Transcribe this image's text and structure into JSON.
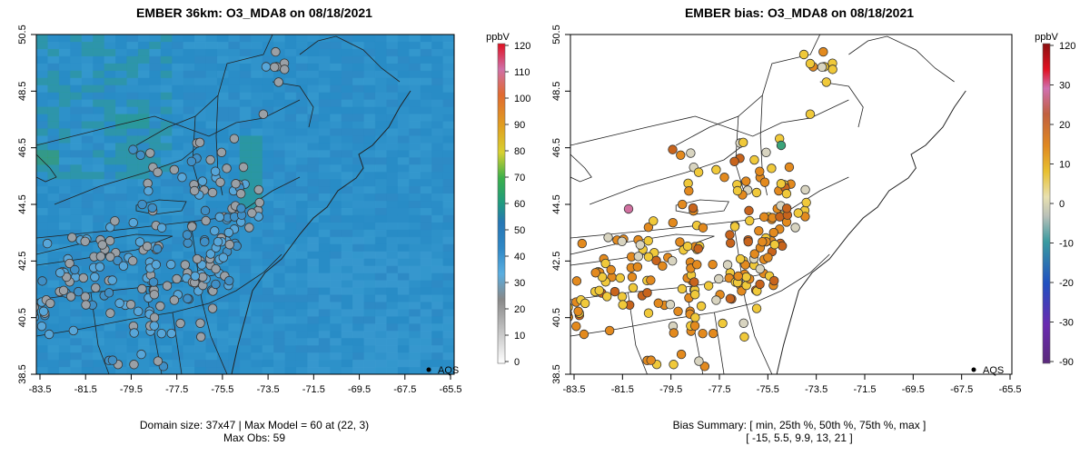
{
  "left": {
    "title": "EMBER 36km: O3_MDA8 on 08/18/2021",
    "footer_line1": "Domain size: 37x47 | Max Model = 60 at (22, 3)",
    "footer_line2": "Max Obs: 59",
    "legend_unit": "ppbV",
    "legend_ticks": [
      "120",
      "110",
      "100",
      "90",
      "80",
      "70",
      "60",
      "50",
      "40",
      "30",
      "20",
      "10",
      "0"
    ],
    "aqs_label": "AQS"
  },
  "right": {
    "title": "EMBER bias: O3_MDA8 on 08/18/2021",
    "footer_line1": "Bias Summary: [ min, 25th %, 50th %, 75th %, max ]",
    "footer_line2": "[ -15,  5.5,  9.9,  13,  21 ]",
    "legend_unit": "ppbV",
    "legend_ticks": [
      "120",
      "30",
      "20",
      "10",
      "0",
      "-10",
      "-20",
      "-30",
      "-90"
    ],
    "aqs_label": "AQS"
  },
  "axes": {
    "x_ticks": [
      "-83.5",
      "-81.5",
      "-79.5",
      "-77.5",
      "-75.5",
      "-73.5",
      "-71.5",
      "-69.5",
      "-67.5",
      "-65.5"
    ],
    "y_ticks": [
      "38.5",
      "40.5",
      "42.5",
      "44.5",
      "46.5",
      "48.5",
      "50.5"
    ]
  },
  "colors": {
    "model_base": "#2b8fc8",
    "ocean_shade": "#2a88c4",
    "land_green": "#3aa37a",
    "obs_gray": "#9aa0a6",
    "obs_blue": "#57a6d9",
    "bias_orange": "#e38a1e",
    "bias_yellow": "#f0c93a"
  }
}
